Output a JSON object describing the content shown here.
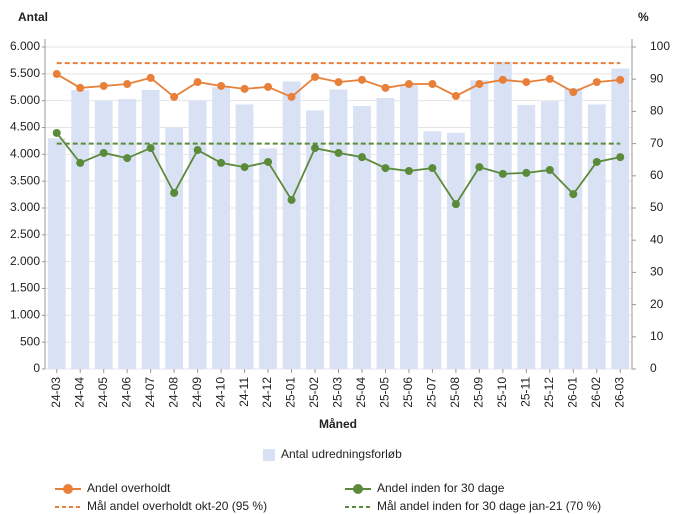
{
  "chart_data": {
    "type": "bar-line",
    "y_title": "Antal",
    "y2_title": "%",
    "x_title": "Måned",
    "categories": [
      "24-03",
      "24-04",
      "24-05",
      "24-06",
      "24-07",
      "24-08",
      "24-09",
      "24-10",
      "24-11",
      "24-12",
      "25-01",
      "25-02",
      "25-03",
      "25-04",
      "25-05",
      "25-06",
      "25-07",
      "25-08",
      "25-09",
      "25-10",
      "25-11",
      "25-12",
      "26-01",
      "26-02",
      "26-03"
    ],
    "ylim": [
      0,
      6000
    ],
    "yticks": [
      0,
      {
        "value": 500,
        "label": "500"
      },
      {
        "value": 1000,
        "label": "1.000"
      },
      {
        "value": 1500,
        "label": "1.500"
      },
      {
        "value": 2000,
        "label": "2.000"
      },
      {
        "value": 2500,
        "label": "2.500"
      },
      {
        "value": 3000,
        "label": "3.000"
      },
      {
        "value": 3500,
        "label": "3.500"
      },
      {
        "value": 4000,
        "label": "4.000"
      },
      {
        "value": 4500,
        "label": "4.500"
      },
      {
        "value": 5000,
        "label": "5.000"
      },
      {
        "value": 5500,
        "label": "5.500"
      },
      {
        "value": 6000,
        "label": "6.000"
      }
    ],
    "y2lim": [
      0,
      100
    ],
    "y2ticks": [
      0,
      10,
      20,
      30,
      40,
      50,
      60,
      70,
      80,
      90,
      100
    ],
    "grid": true,
    "series": [
      {
        "name": "Antal udredningsforløb",
        "type": "bar",
        "color": "#d9e2f5",
        "values": [
          4300,
          5200,
          5000,
          5030,
          5200,
          4500,
          5000,
          5250,
          4930,
          4110,
          5360,
          4820,
          5210,
          4900,
          5050,
          5290,
          4430,
          4400,
          5380,
          5720,
          4920,
          4990,
          5230,
          4930,
          5600
        ]
      },
      {
        "name": "Andel overholdt",
        "type": "line",
        "axis": "y2",
        "color": "#e8803a",
        "values": [
          91.6,
          87.3,
          87.9,
          88.5,
          90.4,
          84.5,
          89.1,
          87.9,
          87.0,
          87.6,
          84.5,
          90.7,
          89.1,
          89.8,
          87.3,
          88.5,
          88.5,
          84.8,
          88.5,
          89.8,
          89.1,
          90.1,
          86.0,
          89.1,
          89.8
        ]
      },
      {
        "name": "Andel inden for 30 dage",
        "type": "line",
        "axis": "y2",
        "color": "#5b8a3a",
        "values": [
          73.3,
          64.0,
          67.1,
          65.5,
          68.6,
          54.7,
          68.0,
          64.0,
          62.7,
          64.3,
          52.5,
          68.6,
          67.1,
          65.8,
          62.4,
          61.5,
          62.4,
          51.2,
          62.7,
          60.6,
          60.9,
          61.8,
          54.3,
          64.3,
          65.8
        ]
      },
      {
        "name": "Mål andel overholdt okt-20 (95 %)",
        "type": "line",
        "axis": "y2",
        "dashed": true,
        "color": "#e8803a",
        "values": [
          95,
          95,
          95,
          95,
          95,
          95,
          95,
          95,
          95,
          95,
          95,
          95,
          95,
          95,
          95,
          95,
          95,
          95,
          95,
          95,
          95,
          95,
          95,
          95,
          95
        ]
      },
      {
        "name": "Mål andel inden for 30 dage jan-21 (70 %)",
        "type": "line",
        "axis": "y2",
        "dashed": true,
        "color": "#5b8a3a",
        "values": [
          70,
          70,
          70,
          70,
          70,
          70,
          70,
          70,
          70,
          70,
          70,
          70,
          70,
          70,
          70,
          70,
          70,
          70,
          70,
          70,
          70,
          70,
          70,
          70,
          70
        ]
      }
    ]
  }
}
